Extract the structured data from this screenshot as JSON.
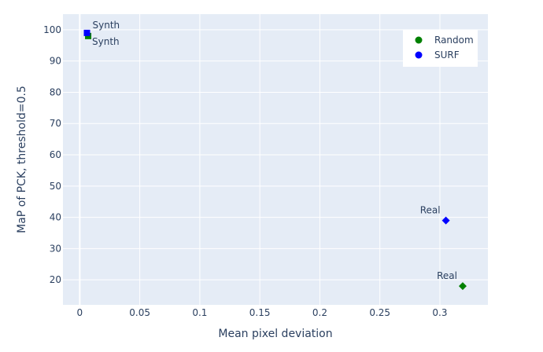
{
  "chart_data": {
    "type": "scatter",
    "title": "",
    "xlabel": "Mean pixel deviation",
    "ylabel": "MaP of PCK, threshold=0.5",
    "xlim": [
      -0.014,
      0.34
    ],
    "ylim": [
      12,
      105
    ],
    "x_ticks": [
      0,
      0.05,
      0.1,
      0.15,
      0.2,
      0.25,
      0.3
    ],
    "x_tick_labels": [
      "0",
      "0.05",
      "0.1",
      "0.15",
      "0.2",
      "0.25",
      "0.3"
    ],
    "y_ticks": [
      20,
      30,
      40,
      50,
      60,
      70,
      80,
      90,
      100
    ],
    "y_tick_labels": [
      "20",
      "30",
      "40",
      "50",
      "60",
      "70",
      "80",
      "90",
      "100"
    ],
    "grid": true,
    "legend_position": "top-right",
    "series": [
      {
        "name": "Random",
        "color": "#008000",
        "points": [
          {
            "x": 0.007,
            "y": 98,
            "label": "Synth",
            "symbol": "square",
            "label_position": "bottom-right"
          },
          {
            "x": 0.319,
            "y": 18,
            "label": "Real",
            "symbol": "diamond",
            "label_position": "top-left"
          }
        ]
      },
      {
        "name": "SURF",
        "color": "#0000ff",
        "points": [
          {
            "x": 0.006,
            "y": 99,
            "label": "Synth",
            "symbol": "square",
            "label_position": "top-right"
          },
          {
            "x": 0.305,
            "y": 39,
            "label": "Real",
            "symbol": "diamond",
            "label_position": "top-left"
          }
        ]
      }
    ]
  }
}
